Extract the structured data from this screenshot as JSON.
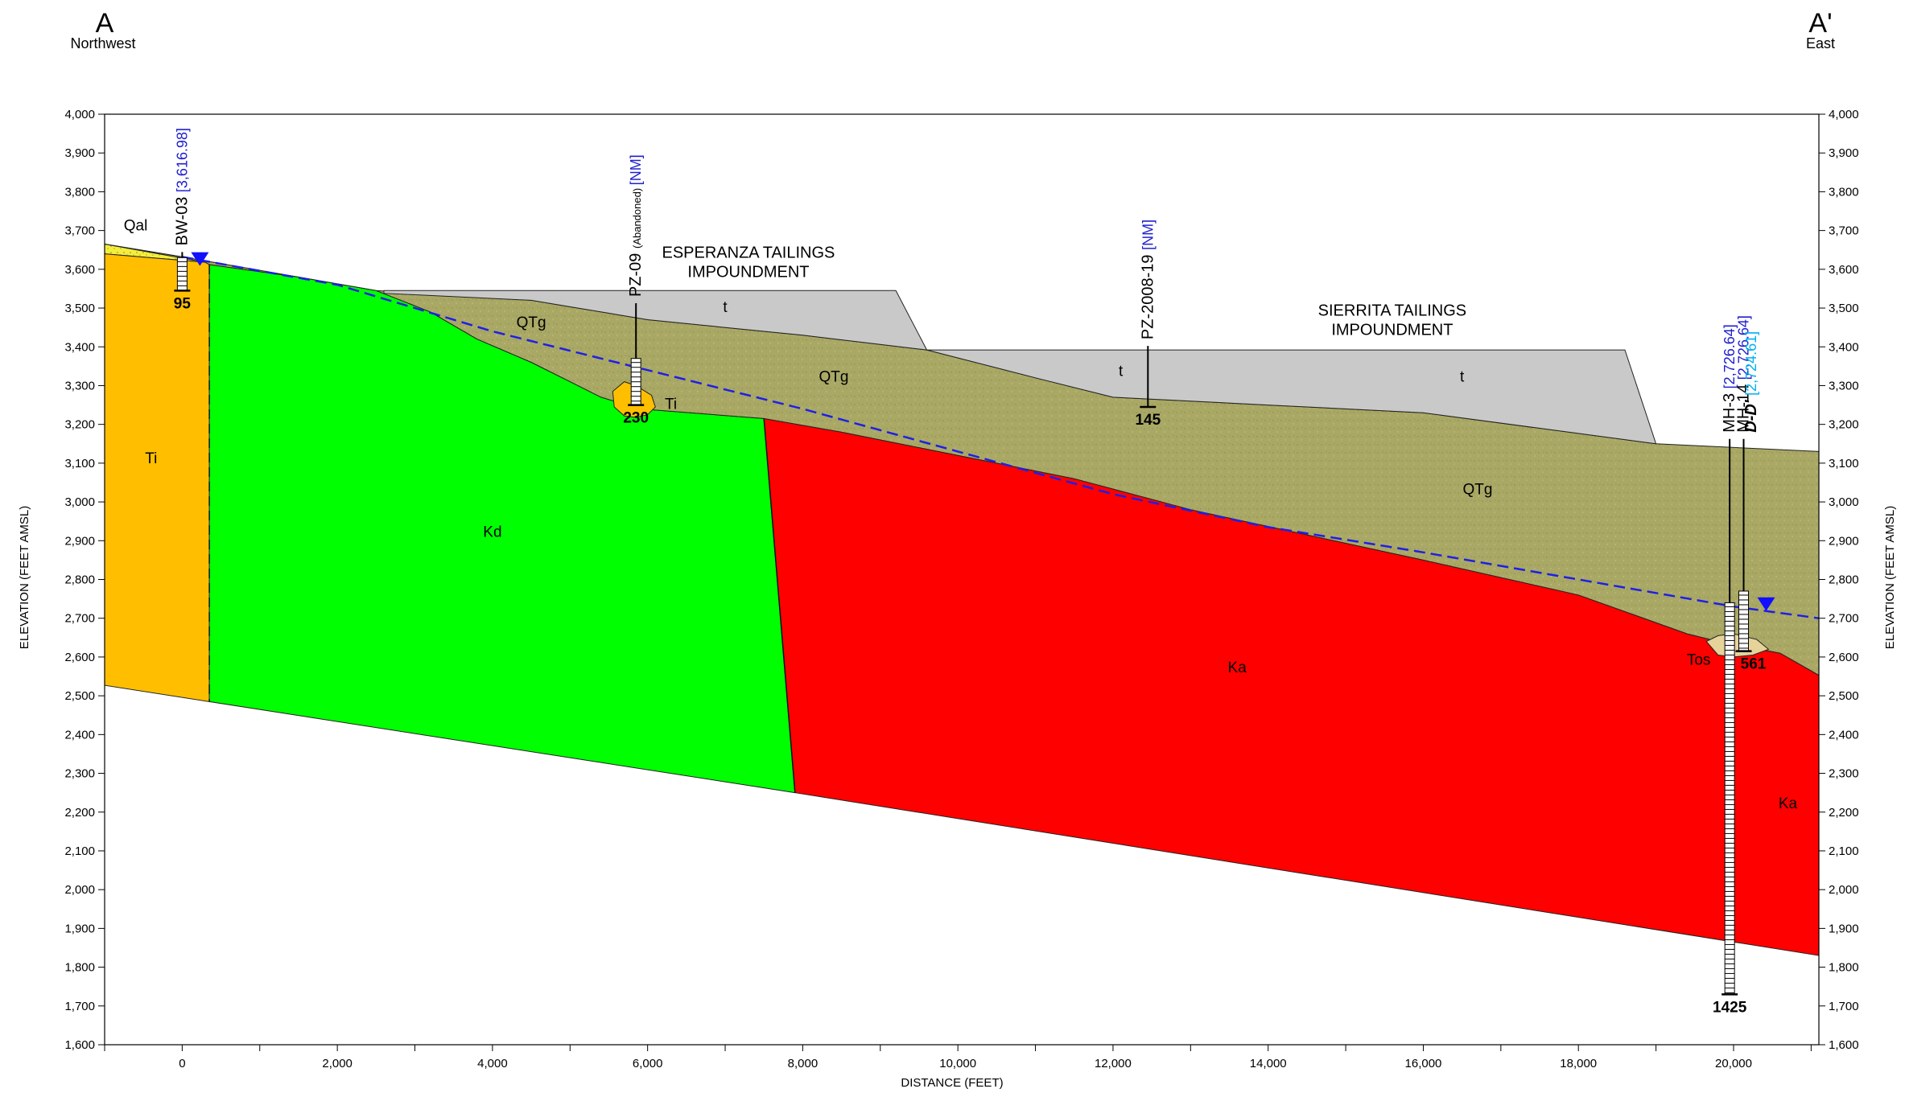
{
  "endpoints": {
    "left": {
      "label": "A",
      "direction": "Northwest"
    },
    "right": {
      "label": "A'",
      "direction": "East"
    }
  },
  "axes": {
    "x_title": "DISTANCE (FEET)",
    "y_title": "ELEVATION (FEET AMSL)",
    "x_range": [
      -1000,
      21100
    ],
    "y_range": [
      1600,
      4000
    ],
    "x_ticks": [
      0,
      2000,
      4000,
      6000,
      8000,
      10000,
      12000,
      14000,
      16000,
      18000,
      20000
    ],
    "x_tick_labels": [
      "0",
      "2,000",
      "4,000",
      "6,000",
      "8,000",
      "10,000",
      "12,000",
      "14,000",
      "16,000",
      "18,000",
      "20,000"
    ],
    "y_ticks": [
      1600,
      1700,
      1800,
      1900,
      2000,
      2100,
      2200,
      2300,
      2400,
      2500,
      2600,
      2700,
      2800,
      2900,
      3000,
      3100,
      3200,
      3300,
      3400,
      3500,
      3600,
      3700,
      3800,
      3900,
      4000
    ],
    "y_tick_labels": [
      "1,600",
      "1,700",
      "1,800",
      "1,900",
      "2,000",
      "2,100",
      "2,200",
      "2,300",
      "2,400",
      "2,500",
      "2,600",
      "2,700",
      "2,800",
      "2,900",
      "3,000",
      "3,100",
      "3,200",
      "3,300",
      "3,400",
      "3,500",
      "3,600",
      "3,700",
      "3,800",
      "3,900",
      "4,000"
    ]
  },
  "units": [
    {
      "code": "Qal",
      "color": "#f4ee3c",
      "polygon": [
        [
          -1000,
          3665
        ],
        [
          0,
          3632
        ],
        [
          300,
          3618
        ],
        [
          -1000,
          3640
        ]
      ]
    },
    {
      "code": "Ti",
      "color": "#ffbf00",
      "polygon": [
        [
          -1000,
          3640
        ],
        [
          300,
          3618
        ],
        [
          350,
          3612
        ],
        [
          350,
          2485
        ],
        [
          -1000,
          2527
        ]
      ]
    },
    {
      "code": "Kd",
      "color": "#00ff00",
      "polygon": [
        [
          350,
          3612
        ],
        [
          1500,
          3580
        ],
        [
          2500,
          3545
        ],
        [
          3200,
          3490
        ],
        [
          3800,
          3420
        ],
        [
          4500,
          3360
        ],
        [
          5000,
          3310
        ],
        [
          5400,
          3270
        ],
        [
          5900,
          3240
        ],
        [
          7500,
          3215
        ],
        [
          7900,
          2250
        ],
        [
          350,
          2485
        ]
      ]
    },
    {
      "code": "Ka",
      "color": "#ff0000",
      "polygon": [
        [
          7500,
          3215
        ],
        [
          8500,
          3180
        ],
        [
          10000,
          3120
        ],
        [
          11500,
          3060
        ],
        [
          13000,
          2980
        ],
        [
          16000,
          2850
        ],
        [
          18000,
          2760
        ],
        [
          19400,
          2660
        ],
        [
          19800,
          2640
        ],
        [
          20600,
          2610
        ],
        [
          21100,
          2553
        ],
        [
          21100,
          1830
        ],
        [
          7900,
          2250
        ]
      ]
    },
    {
      "code": "QTg",
      "color": "#a9a865",
      "polygon": [
        [
          -1000,
          3665
        ],
        [
          0,
          3632
        ],
        [
          1500,
          3580
        ],
        [
          2500,
          3545
        ],
        [
          4500,
          3520
        ],
        [
          6000,
          3470
        ],
        [
          8000,
          3430
        ],
        [
          9600,
          3392
        ],
        [
          11000,
          3320
        ],
        [
          12000,
          3270
        ],
        [
          14000,
          3250
        ],
        [
          16000,
          3230
        ],
        [
          19000,
          3150
        ],
        [
          21100,
          3130
        ],
        [
          21100,
          2553
        ],
        [
          20600,
          2610
        ],
        [
          19800,
          2640
        ],
        [
          19400,
          2660
        ],
        [
          18000,
          2760
        ],
        [
          16000,
          2850
        ],
        [
          13000,
          2980
        ],
        [
          11500,
          3060
        ],
        [
          10000,
          3120
        ],
        [
          8500,
          3180
        ],
        [
          7500,
          3215
        ],
        [
          5900,
          3240
        ],
        [
          5400,
          3270
        ],
        [
          5000,
          3310
        ],
        [
          4500,
          3360
        ],
        [
          3800,
          3420
        ],
        [
          3200,
          3490
        ],
        [
          2500,
          3545
        ],
        [
          1500,
          3580
        ],
        [
          350,
          3612
        ],
        [
          300,
          3618
        ]
      ]
    },
    {
      "code": "t",
      "color": "#c9c9c9",
      "polygon": [
        [
          2600,
          3545
        ],
        [
          9200,
          3545
        ],
        [
          9600,
          3392
        ],
        [
          8000,
          3430
        ],
        [
          6000,
          3470
        ],
        [
          4500,
          3520
        ],
        [
          2600,
          3538
        ]
      ]
    },
    {
      "code": "t",
      "color": "#c9c9c9",
      "polygon": [
        [
          9600,
          3392
        ],
        [
          18600,
          3392
        ],
        [
          19000,
          3150
        ],
        [
          16000,
          3230
        ],
        [
          14000,
          3250
        ],
        [
          12000,
          3270
        ],
        [
          11000,
          3320
        ]
      ]
    }
  ],
  "inclusions": [
    {
      "code": "Ti",
      "color": "#ffbf00",
      "polygon": [
        [
          5550,
          3285
        ],
        [
          5700,
          3310
        ],
        [
          5850,
          3300
        ],
        [
          6050,
          3275
        ],
        [
          6100,
          3245
        ],
        [
          6000,
          3225
        ],
        [
          5850,
          3218
        ],
        [
          5700,
          3222
        ],
        [
          5570,
          3245
        ]
      ]
    },
    {
      "code": "Tos",
      "color": "#e6d39a",
      "polygon": [
        [
          19650,
          2640
        ],
        [
          19800,
          2655
        ],
        [
          20000,
          2660
        ],
        [
          20300,
          2645
        ],
        [
          20450,
          2620
        ],
        [
          20250,
          2605
        ],
        [
          20000,
          2600
        ],
        [
          19800,
          2605
        ]
      ]
    }
  ],
  "unit_labels": [
    {
      "text": "Qal",
      "x": -600,
      "y": 3700
    },
    {
      "text": "Ti",
      "x": -400,
      "y": 3100
    },
    {
      "text": "Kd",
      "x": 4000,
      "y": 2910
    },
    {
      "text": "Ka",
      "x": 13600,
      "y": 2560
    },
    {
      "text": "Ka",
      "x": 20700,
      "y": 2210
    },
    {
      "text": "QTg",
      "x": 4500,
      "y": 3450
    },
    {
      "text": "QTg",
      "x": 8400,
      "y": 3310
    },
    {
      "text": "QTg",
      "x": 16700,
      "y": 3020
    },
    {
      "text": "t",
      "x": 7000,
      "y": 3490
    },
    {
      "text": "t",
      "x": 12100,
      "y": 3325
    },
    {
      "text": "t",
      "x": 16500,
      "y": 3310
    },
    {
      "text": "Ti",
      "x": 6300,
      "y": 3240
    },
    {
      "text": "Tos",
      "x": 19550,
      "y": 2580
    }
  ],
  "impoundments": [
    {
      "line1": "ESPERANZA TAILINGS",
      "line2": "IMPOUNDMENT",
      "x": 7300,
      "y": 3630
    },
    {
      "line1": "SIERRITA TAILINGS",
      "line2": "IMPOUNDMENT",
      "x": 15600,
      "y": 3480
    }
  ],
  "water_table": [
    [
      0,
      3632
    ],
    [
      2000,
      3560
    ],
    [
      4000,
      3440
    ],
    [
      6000,
      3340
    ],
    [
      8000,
      3240
    ],
    [
      10000,
      3130
    ],
    [
      12000,
      3020
    ],
    [
      14000,
      2935
    ],
    [
      16000,
      2870
    ],
    [
      18000,
      2800
    ],
    [
      20000,
      2730
    ],
    [
      21100,
      2700
    ]
  ],
  "contacts": [
    {
      "style": "dashed",
      "points": [
        [
          350,
          3612
        ],
        [
          350,
          2485
        ]
      ]
    },
    {
      "style": "solid",
      "points": [
        [
          7500,
          3215
        ],
        [
          7900,
          2250
        ]
      ]
    }
  ],
  "wells": [
    {
      "name": "BW-03",
      "note": "",
      "elevation_label": "[3,616.98]",
      "x": 0,
      "top": 3632,
      "screen_top": 3630,
      "screen_bottom": 3545,
      "total_depth": "95",
      "water_level": 3617
    },
    {
      "name": "PZ-09",
      "note": "(Abandoned)",
      "elevation_label": "[NM]",
      "x": 5850,
      "top": 3500,
      "screen_top": 3370,
      "screen_bottom": 3250,
      "total_depth": "230",
      "water_level": null
    },
    {
      "name": "PZ-2008-19",
      "note": "",
      "elevation_label": "[NM]",
      "x": 12450,
      "top": 3390,
      "screen_top": null,
      "screen_bottom": null,
      "total_depth": "145",
      "water_level": null
    },
    {
      "name": "MH-3",
      "note": "",
      "elevation_label": "[2,726.64]",
      "x": 19950,
      "top": 3150,
      "screen_top": 2740,
      "screen_bottom": 1730,
      "total_depth": "1425",
      "water_level": null
    },
    {
      "name": "MH-14",
      "note": "",
      "elevation_label": "[2,726.64]",
      "x": 20130,
      "top": 3150,
      "screen_top": 2770,
      "screen_bottom": 2615,
      "total_depth": "561",
      "water_level": 2727
    }
  ],
  "cross_section_ref": {
    "label": "D-D'",
    "elevation_label": "[2,724.61]",
    "x": 20290
  },
  "colors": {
    "water": "#1f1fe6",
    "elev_text": "#2020d0",
    "dd_elev": "#00b0f0"
  }
}
